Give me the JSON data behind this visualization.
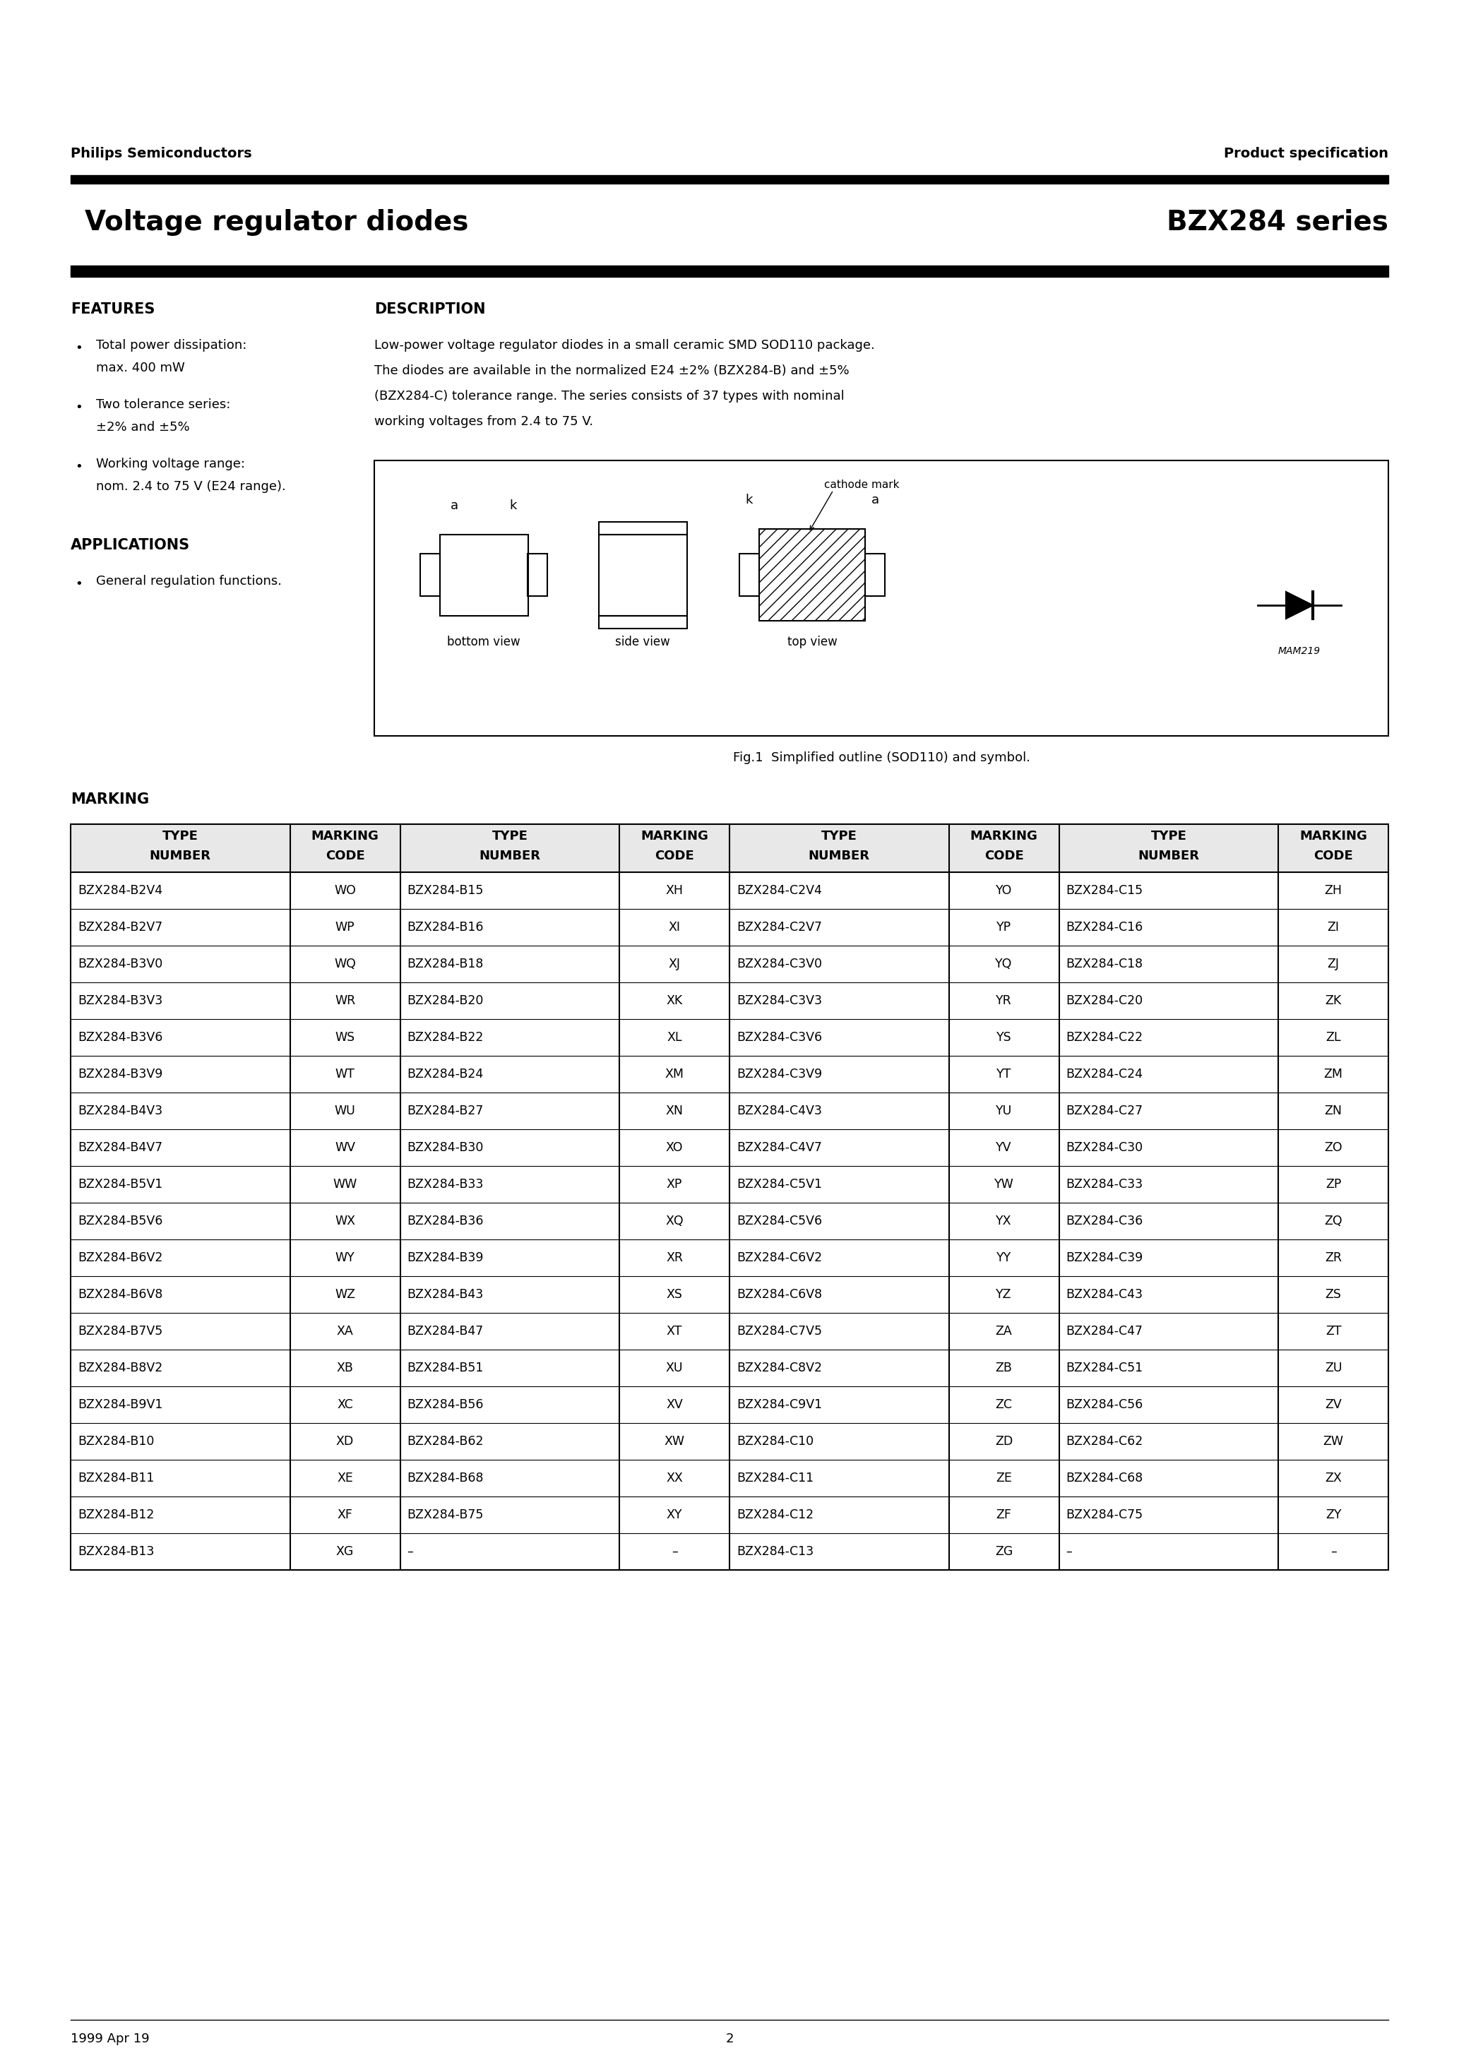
{
  "page_title_left": "Voltage regulator diodes",
  "page_title_right": "BZX284 series",
  "header_left": "Philips Semiconductors",
  "header_right": "Product specification",
  "features_title": "FEATURES",
  "features": [
    [
      "Total power dissipation:",
      "max. 400 mW"
    ],
    [
      "Two tolerance series:",
      "±2% and ±5%"
    ],
    [
      "Working voltage range:",
      "nom. 2.4 to 75 V (E24 range)."
    ]
  ],
  "applications_title": "APPLICATIONS",
  "applications": [
    "General regulation functions."
  ],
  "description_title": "DESCRIPTION",
  "description_lines": [
    "Low-power voltage regulator diodes in a small ceramic SMD SOD110 package.",
    "The diodes are available in the normalized E24 ±2% (BZX284-B) and ±5%",
    "(BZX284-C) tolerance range. The series consists of 37 types with nominal",
    "working voltages from 2.4 to 75 V."
  ],
  "fig_caption": "Fig.1  Simplified outline (SOD110) and symbol.",
  "marking_title": "MARKING",
  "table_headers": [
    [
      "TYPE",
      "NUMBER"
    ],
    [
      "MARKING",
      "CODE"
    ],
    [
      "TYPE",
      "NUMBER"
    ],
    [
      "MARKING",
      "CODE"
    ],
    [
      "TYPE",
      "NUMBER"
    ],
    [
      "MARKING",
      "CODE"
    ],
    [
      "TYPE",
      "NUMBER"
    ],
    [
      "MARKING",
      "CODE"
    ]
  ],
  "table_data": [
    [
      "BZX284-B2V4",
      "WO",
      "BZX284-B15",
      "XH",
      "BZX284-C2V4",
      "YO",
      "BZX284-C15",
      "ZH"
    ],
    [
      "BZX284-B2V7",
      "WP",
      "BZX284-B16",
      "XI",
      "BZX284-C2V7",
      "YP",
      "BZX284-C16",
      "ZI"
    ],
    [
      "BZX284-B3V0",
      "WQ",
      "BZX284-B18",
      "XJ",
      "BZX284-C3V0",
      "YQ",
      "BZX284-C18",
      "ZJ"
    ],
    [
      "BZX284-B3V3",
      "WR",
      "BZX284-B20",
      "XK",
      "BZX284-C3V3",
      "YR",
      "BZX284-C20",
      "ZK"
    ],
    [
      "BZX284-B3V6",
      "WS",
      "BZX284-B22",
      "XL",
      "BZX284-C3V6",
      "YS",
      "BZX284-C22",
      "ZL"
    ],
    [
      "BZX284-B3V9",
      "WT",
      "BZX284-B24",
      "XM",
      "BZX284-C3V9",
      "YT",
      "BZX284-C24",
      "ZM"
    ],
    [
      "BZX284-B4V3",
      "WU",
      "BZX284-B27",
      "XN",
      "BZX284-C4V3",
      "YU",
      "BZX284-C27",
      "ZN"
    ],
    [
      "BZX284-B4V7",
      "WV",
      "BZX284-B30",
      "XO",
      "BZX284-C4V7",
      "YV",
      "BZX284-C30",
      "ZO"
    ],
    [
      "BZX284-B5V1",
      "WW",
      "BZX284-B33",
      "XP",
      "BZX284-C5V1",
      "YW",
      "BZX284-C33",
      "ZP"
    ],
    [
      "BZX284-B5V6",
      "WX",
      "BZX284-B36",
      "XQ",
      "BZX284-C5V6",
      "YX",
      "BZX284-C36",
      "ZQ"
    ],
    [
      "BZX284-B6V2",
      "WY",
      "BZX284-B39",
      "XR",
      "BZX284-C6V2",
      "YY",
      "BZX284-C39",
      "ZR"
    ],
    [
      "BZX284-B6V8",
      "WZ",
      "BZX284-B43",
      "XS",
      "BZX284-C6V8",
      "YZ",
      "BZX284-C43",
      "ZS"
    ],
    [
      "BZX284-B7V5",
      "XA",
      "BZX284-B47",
      "XT",
      "BZX284-C7V5",
      "ZA",
      "BZX284-C47",
      "ZT"
    ],
    [
      "BZX284-B8V2",
      "XB",
      "BZX284-B51",
      "XU",
      "BZX284-C8V2",
      "ZB",
      "BZX284-C51",
      "ZU"
    ],
    [
      "BZX284-B9V1",
      "XC",
      "BZX284-B56",
      "XV",
      "BZX284-C9V1",
      "ZC",
      "BZX284-C56",
      "ZV"
    ],
    [
      "BZX284-B10",
      "XD",
      "BZX284-B62",
      "XW",
      "BZX284-C10",
      "ZD",
      "BZX284-C62",
      "ZW"
    ],
    [
      "BZX284-B11",
      "XE",
      "BZX284-B68",
      "XX",
      "BZX284-C11",
      "ZE",
      "BZX284-C68",
      "ZX"
    ],
    [
      "BZX284-B12",
      "XF",
      "BZX284-B75",
      "XY",
      "BZX284-C12",
      "ZF",
      "BZX284-C75",
      "ZY"
    ],
    [
      "BZX284-B13",
      "XG",
      "–",
      "–",
      "BZX284-C13",
      "ZG",
      "–",
      "–"
    ]
  ],
  "footer_left": "1999 Apr 19",
  "footer_center": "2"
}
